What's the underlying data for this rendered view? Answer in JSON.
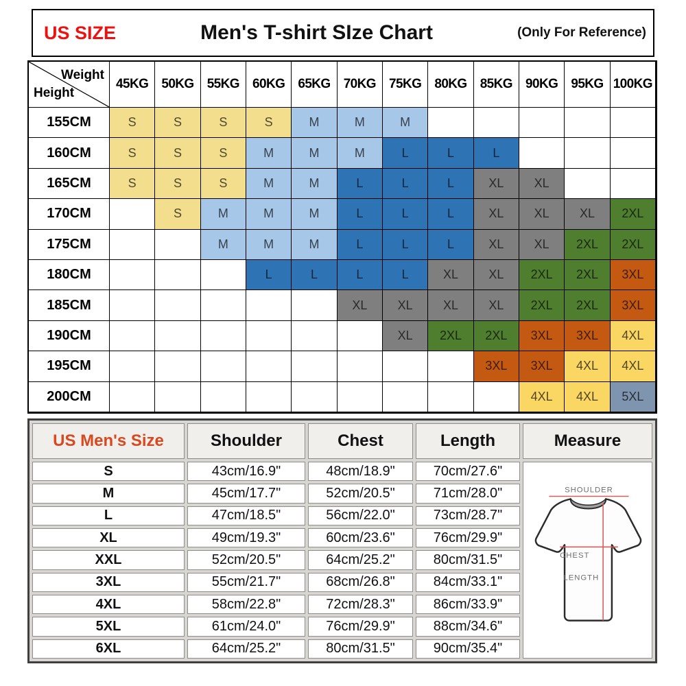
{
  "header": {
    "us_size_label": "US SIZE",
    "title": "Men's T-shirt SIze Chart",
    "note": "(Only For Reference)"
  },
  "colors": {
    "title_red": "#ee1111",
    "size_header_red": "#d9481f",
    "S": "#f3de8d",
    "M": "#a7c7e8",
    "L": "#2e74b5",
    "XL": "#7f7f7f",
    "2XL": "#4f7e2f",
    "3XL": "#c45911",
    "4XL": "#fad763",
    "5XL": "#7f94af",
    "diagram_line_red": "#e05a5a"
  },
  "chart_data": [
    {
      "type": "heatmap",
      "title": "Men's T-shirt SIze Chart",
      "corner_top": "Weight",
      "corner_bottom": "Height",
      "x_categories": [
        "45KG",
        "50KG",
        "55KG",
        "60KG",
        "65KG",
        "70KG",
        "75KG",
        "80KG",
        "85KG",
        "90KG",
        "95KG",
        "100KG"
      ],
      "y_categories": [
        "155CM",
        "160CM",
        "165CM",
        "170CM",
        "175CM",
        "180CM",
        "185CM",
        "190CM",
        "195CM",
        "200CM"
      ],
      "values": [
        [
          "S",
          "S",
          "S",
          "S",
          "M",
          "M",
          "M",
          "",
          "",
          "",
          "",
          ""
        ],
        [
          "S",
          "S",
          "S",
          "M",
          "M",
          "M",
          "L",
          "L",
          "L",
          "",
          "",
          ""
        ],
        [
          "S",
          "S",
          "S",
          "M",
          "M",
          "L",
          "L",
          "L",
          "XL",
          "XL",
          "",
          ""
        ],
        [
          "",
          "S",
          "M",
          "M",
          "M",
          "L",
          "L",
          "L",
          "XL",
          "XL",
          "XL",
          "2XL"
        ],
        [
          "",
          "",
          "M",
          "M",
          "M",
          "L",
          "L",
          "L",
          "XL",
          "XL",
          "2XL",
          "2XL"
        ],
        [
          "",
          "",
          "",
          "L",
          "L",
          "L",
          "L",
          "XL",
          "XL",
          "2XL",
          "2XL",
          "3XL"
        ],
        [
          "",
          "",
          "",
          "",
          "",
          "XL",
          "XL",
          "XL",
          "XL",
          "2XL",
          "2XL",
          "3XL"
        ],
        [
          "",
          "",
          "",
          "",
          "",
          "",
          "XL",
          "2XL",
          "2XL",
          "3XL",
          "3XL",
          "4XL"
        ],
        [
          "",
          "",
          "",
          "",
          "",
          "",
          "",
          "",
          "3XL",
          "3XL",
          "4XL",
          "4XL"
        ],
        [
          "",
          "",
          "",
          "",
          "",
          "",
          "",
          "",
          "",
          "4XL",
          "4XL",
          "5XL"
        ]
      ],
      "color_map": {
        "S": "#f3de8d",
        "M": "#a7c7e8",
        "L": "#2e74b5",
        "XL": "#7f7f7f",
        "2XL": "#4f7e2f",
        "3XL": "#c45911",
        "4XL": "#fad763",
        "5XL": "#7f94af"
      }
    },
    {
      "type": "table",
      "columns": [
        "US Men's Size",
        "Shoulder",
        "Chest",
        "Length",
        "Measure"
      ],
      "rows": [
        [
          "S",
          "43cm/16.9\"",
          "48cm/18.9\"",
          "70cm/27.6\""
        ],
        [
          "M",
          "45cm/17.7\"",
          "52cm/20.5\"",
          "71cm/28.0\""
        ],
        [
          "L",
          "47cm/18.5\"",
          "56cm/22.0\"",
          "73cm/28.7\""
        ],
        [
          "XL",
          "49cm/19.3\"",
          "60cm/23.6\"",
          "76cm/29.9\""
        ],
        [
          "XXL",
          "52cm/20.5\"",
          "64cm/25.2\"",
          "80cm/31.5\""
        ],
        [
          "3XL",
          "55cm/21.7\"",
          "68cm/26.8\"",
          "84cm/33.1\""
        ],
        [
          "4XL",
          "58cm/22.8\"",
          "72cm/28.3\"",
          "86cm/33.9\""
        ],
        [
          "5XL",
          "61cm/24.0\"",
          "76cm/29.9\"",
          "88cm/34.6\""
        ],
        [
          "6XL",
          "64cm/25.2\"",
          "80cm/31.5\"",
          "90cm/35.4\""
        ]
      ]
    }
  ],
  "diagram": {
    "labels": {
      "shoulder": "SHOULDER",
      "chest": "CHEST",
      "length": "LENGTH"
    }
  }
}
